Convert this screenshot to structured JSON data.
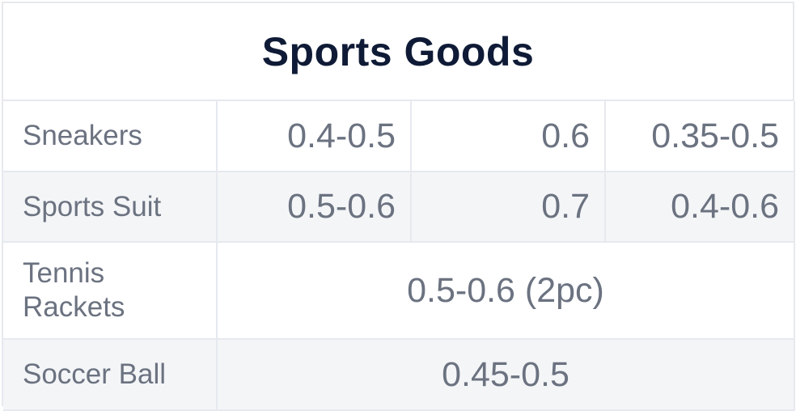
{
  "title": "Sports Goods",
  "rows": [
    {
      "label": "Sneakers",
      "c1": "0.4-0.5",
      "c2": "0.6",
      "c3": "0.35-0.5"
    },
    {
      "label": "Sports Suit",
      "c1": "0.5-0.6",
      "c2": "0.7",
      "c3": "0.4-0.6"
    },
    {
      "label": "Tennis Rackets",
      "merged": "0.5-0.6 (2pc)"
    },
    {
      "label": "Soccer Ball",
      "merged": "0.45-0.5"
    }
  ]
}
